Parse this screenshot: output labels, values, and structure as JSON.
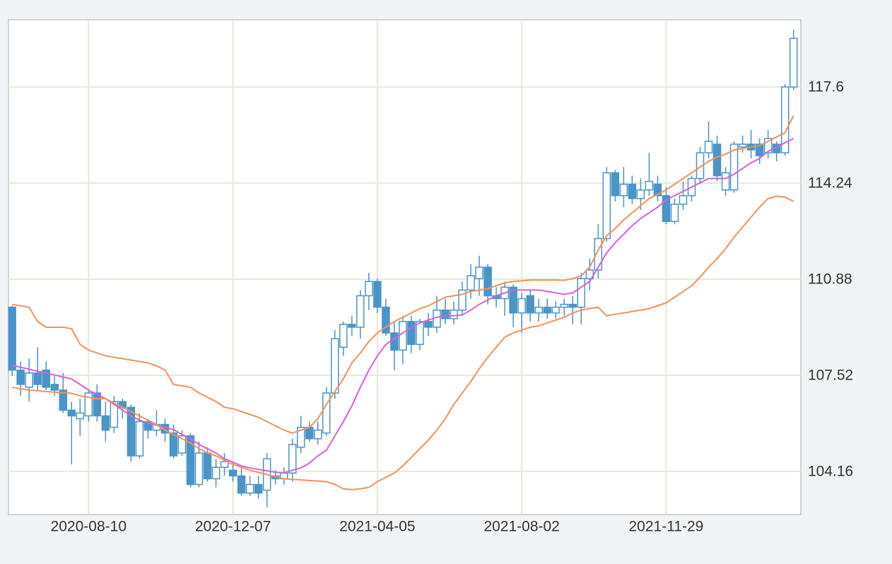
{
  "chart_data": {
    "type": "candlestick",
    "x": [
      "2020-06-08",
      "2020-06-15",
      "2020-06-22",
      "2020-06-29",
      "2020-07-06",
      "2020-07-13",
      "2020-07-20",
      "2020-07-27",
      "2020-08-03",
      "2020-08-10",
      "2020-08-17",
      "2020-08-24",
      "2020-08-31",
      "2020-09-07",
      "2020-09-14",
      "2020-09-21",
      "2020-09-28",
      "2020-10-05",
      "2020-10-12",
      "2020-10-19",
      "2020-10-26",
      "2020-11-02",
      "2020-11-09",
      "2020-11-16",
      "2020-11-23",
      "2020-11-30",
      "2020-12-07",
      "2020-12-14",
      "2020-12-21",
      "2020-12-28",
      "2021-01-04",
      "2021-01-11",
      "2021-01-18",
      "2021-01-25",
      "2021-02-01",
      "2021-02-08",
      "2021-02-15",
      "2021-02-22",
      "2021-03-01",
      "2021-03-08",
      "2021-03-15",
      "2021-03-22",
      "2021-03-29",
      "2021-04-05",
      "2021-04-12",
      "2021-04-19",
      "2021-04-26",
      "2021-05-03",
      "2021-05-10",
      "2021-05-17",
      "2021-05-24",
      "2021-05-31",
      "2021-06-07",
      "2021-06-14",
      "2021-06-21",
      "2021-06-28",
      "2021-07-05",
      "2021-07-12",
      "2021-07-19",
      "2021-07-26",
      "2021-08-02",
      "2021-08-09",
      "2021-08-16",
      "2021-08-23",
      "2021-08-30",
      "2021-09-06",
      "2021-09-13",
      "2021-09-20",
      "2021-09-27",
      "2021-10-04",
      "2021-10-11",
      "2021-10-18",
      "2021-10-25",
      "2021-11-01",
      "2021-11-08",
      "2021-11-15",
      "2021-11-22",
      "2021-11-29",
      "2021-12-06",
      "2021-12-13",
      "2021-12-20",
      "2021-12-27",
      "2022-01-03",
      "2022-01-10",
      "2022-01-17",
      "2022-01-24",
      "2022-01-31",
      "2022-02-07",
      "2022-02-14",
      "2022-02-21",
      "2022-02-28",
      "2022-03-07",
      "2022-03-14"
    ],
    "open": [
      109.9,
      107.7,
      107.1,
      107.6,
      107.7,
      107.2,
      107.0,
      106.3,
      106.0,
      106.1,
      106.9,
      106.1,
      105.7,
      106.6,
      106.4,
      104.7,
      105.9,
      105.6,
      105.8,
      105.5,
      104.8,
      105.4,
      103.7,
      104.8,
      103.9,
      104.3,
      104.2,
      104.0,
      103.4,
      103.7,
      103.5,
      104.0,
      103.9,
      104.1,
      105.0,
      105.7,
      105.3,
      105.5,
      106.9,
      108.5,
      109.3,
      109.2,
      110.3,
      110.8,
      109.9,
      109.0,
      108.4,
      109.4,
      108.6,
      109.4,
      109.2,
      109.8,
      109.5,
      109.8,
      110.5,
      110.9,
      111.3,
      110.3,
      110.2,
      110.6,
      109.7,
      110.3,
      109.7,
      109.9,
      109.7,
      109.9,
      110.0,
      109.9,
      110.9,
      111.2,
      112.3,
      114.6,
      113.8,
      114.2,
      113.7,
      114.0,
      114.2,
      113.8,
      112.9,
      113.5,
      113.8,
      114.4,
      115.3,
      115.6,
      114.0,
      114.0,
      115.5,
      115.6,
      115.6,
      115.3,
      115.6,
      115.3,
      117.6
    ],
    "high": [
      109.95,
      108.0,
      108.1,
      108.5,
      108.0,
      107.5,
      107.6,
      106.6,
      106.7,
      107.0,
      107.2,
      106.6,
      106.8,
      106.7,
      106.5,
      106.2,
      106.0,
      106.3,
      106.0,
      105.8,
      105.6,
      105.5,
      105.2,
      105.0,
      104.6,
      104.8,
      104.5,
      104.3,
      104.0,
      104.0,
      104.8,
      104.2,
      104.3,
      105.3,
      106.1,
      105.9,
      105.9,
      107.1,
      109.1,
      109.4,
      109.6,
      110.5,
      111.1,
      110.9,
      110.2,
      109.4,
      109.6,
      109.6,
      109.5,
      109.7,
      110.3,
      110.2,
      110.1,
      110.8,
      111.4,
      111.7,
      111.4,
      110.6,
      110.8,
      110.7,
      110.4,
      110.5,
      110.2,
      110.2,
      110.1,
      110.2,
      110.3,
      111.1,
      111.6,
      112.8,
      114.8,
      114.7,
      114.8,
      114.5,
      114.4,
      115.3,
      114.5,
      114.1,
      113.7,
      114.3,
      114.5,
      115.5,
      116.4,
      115.9,
      114.8,
      115.7,
      115.9,
      116.1,
      115.8,
      116.1,
      115.7,
      117.7,
      119.6
    ],
    "low": [
      107.5,
      106.8,
      106.6,
      107.0,
      107.0,
      106.8,
      106.2,
      104.4,
      105.4,
      105.9,
      105.9,
      105.2,
      105.5,
      106.0,
      104.5,
      104.6,
      105.3,
      105.4,
      105.2,
      104.6,
      104.7,
      103.6,
      103.6,
      103.8,
      103.6,
      104.0,
      103.8,
      103.3,
      103.3,
      103.2,
      102.9,
      103.7,
      103.7,
      103.8,
      104.8,
      105.2,
      105.1,
      105.4,
      106.7,
      108.2,
      108.9,
      108.8,
      109.8,
      109.7,
      108.9,
      107.7,
      107.9,
      108.3,
      108.4,
      108.9,
      109.0,
      109.3,
      109.3,
      109.6,
      110.2,
      110.3,
      110.0,
      109.9,
      109.6,
      109.2,
      109.0,
      109.4,
      109.4,
      109.5,
      109.5,
      109.6,
      109.3,
      109.3,
      110.5,
      110.9,
      112.2,
      113.6,
      113.4,
      113.5,
      113.3,
      113.8,
      113.6,
      112.8,
      112.8,
      113.3,
      113.6,
      114.2,
      115.1,
      114.3,
      113.8,
      113.9,
      115.3,
      115.1,
      114.9,
      115.1,
      115.0,
      115.2,
      117.5
    ],
    "close": [
      107.7,
      107.2,
      107.6,
      107.2,
      107.1,
      107.0,
      106.3,
      106.1,
      106.2,
      106.9,
      106.1,
      105.6,
      106.6,
      106.4,
      104.7,
      105.9,
      105.6,
      105.8,
      105.5,
      104.7,
      105.4,
      103.7,
      104.8,
      103.9,
      104.3,
      104.5,
      104.0,
      103.4,
      103.7,
      103.4,
      104.6,
      103.9,
      104.1,
      105.1,
      105.7,
      105.3,
      105.6,
      106.9,
      108.8,
      109.3,
      109.2,
      110.3,
      110.8,
      109.9,
      109.0,
      108.4,
      109.4,
      108.6,
      109.4,
      109.2,
      109.8,
      109.5,
      109.8,
      110.5,
      111.0,
      111.3,
      110.3,
      110.2,
      110.6,
      109.7,
      110.2,
      109.7,
      109.9,
      109.7,
      109.9,
      110.0,
      109.9,
      110.9,
      111.2,
      112.3,
      114.6,
      113.8,
      114.2,
      113.7,
      114.0,
      114.3,
      113.8,
      112.9,
      113.5,
      113.8,
      114.4,
      115.3,
      115.7,
      114.5,
      114.6,
      115.6,
      115.6,
      115.4,
      115.2,
      115.8,
      115.3,
      117.6,
      119.3
    ],
    "color": "#4a94c8",
    "lines": [
      {
        "color": "#f4915a",
        "values": [
          110.0,
          109.95,
          109.9,
          109.4,
          109.2,
          109.2,
          109.2,
          109.15,
          108.6,
          108.4,
          108.3,
          108.2,
          108.15,
          108.1,
          108.05,
          108.0,
          107.95,
          107.85,
          107.7,
          107.2,
          107.15,
          107.1,
          106.9,
          106.75,
          106.6,
          106.4,
          106.35,
          106.25,
          106.15,
          106.05,
          105.9,
          105.75,
          105.6,
          105.5,
          105.6,
          105.7,
          106.0,
          106.5,
          106.95,
          107.4,
          107.95,
          108.3,
          108.7,
          109.0,
          109.2,
          109.4,
          109.55,
          109.7,
          109.85,
          109.95,
          110.1,
          110.25,
          110.3,
          110.35,
          110.45,
          110.5,
          110.55,
          110.65,
          110.75,
          110.8,
          110.82,
          110.85,
          110.85,
          110.85,
          110.85,
          110.84,
          110.9,
          111.0,
          111.3,
          111.9,
          112.4,
          112.65,
          112.95,
          113.2,
          113.45,
          113.7,
          113.85,
          114.0,
          114.2,
          114.4,
          114.6,
          114.8,
          115.0,
          115.15,
          115.25,
          115.4,
          115.45,
          115.5,
          115.55,
          115.7,
          115.85,
          116.0,
          116.6
        ]
      },
      {
        "color": "#d562d8",
        "values": [
          107.87,
          107.8,
          107.73,
          107.66,
          107.6,
          107.53,
          107.46,
          107.39,
          107.2,
          107.0,
          106.85,
          106.7,
          106.5,
          106.3,
          106.1,
          105.95,
          105.85,
          105.78,
          105.7,
          105.62,
          105.45,
          105.3,
          105.1,
          104.95,
          104.8,
          104.6,
          104.48,
          104.35,
          104.28,
          104.23,
          104.18,
          104.13,
          104.1,
          104.2,
          104.28,
          104.45,
          104.7,
          104.9,
          105.4,
          105.9,
          106.45,
          107.1,
          107.7,
          108.2,
          108.6,
          108.8,
          109.0,
          109.2,
          109.35,
          109.45,
          109.55,
          109.6,
          109.6,
          109.63,
          109.8,
          110.0,
          110.15,
          110.3,
          110.4,
          110.5,
          110.5,
          110.5,
          110.5,
          110.45,
          110.4,
          110.35,
          110.4,
          110.6,
          110.8,
          111.3,
          111.8,
          112.15,
          112.45,
          112.75,
          113.0,
          113.2,
          113.4,
          113.65,
          113.8,
          113.95,
          114.1,
          114.25,
          114.4,
          114.4,
          114.4,
          114.55,
          114.75,
          114.95,
          115.1,
          115.35,
          115.5,
          115.65,
          115.8
        ]
      },
      {
        "color": "#f4915a",
        "values": [
          107.1,
          107.05,
          107.0,
          106.98,
          106.95,
          106.93,
          106.91,
          106.89,
          106.8,
          106.75,
          106.7,
          106.7,
          106.55,
          106.4,
          106.25,
          106.1,
          105.95,
          105.8,
          105.6,
          105.45,
          105.3,
          105.15,
          104.95,
          104.8,
          104.7,
          104.55,
          104.4,
          104.3,
          104.2,
          104.12,
          104.05,
          103.97,
          103.9,
          103.88,
          103.86,
          103.84,
          103.82,
          103.8,
          103.7,
          103.55,
          103.52,
          103.55,
          103.6,
          103.8,
          103.95,
          104.1,
          104.35,
          104.65,
          104.95,
          105.25,
          105.6,
          106.0,
          106.5,
          106.9,
          107.3,
          107.75,
          108.15,
          108.5,
          108.85,
          109.0,
          109.1,
          109.2,
          109.25,
          109.35,
          109.45,
          109.55,
          109.7,
          109.8,
          109.85,
          109.9,
          109.6,
          109.65,
          109.7,
          109.75,
          109.8,
          109.85,
          109.95,
          110.05,
          110.25,
          110.45,
          110.65,
          110.95,
          111.3,
          111.6,
          111.95,
          112.35,
          112.7,
          113.05,
          113.4,
          113.7,
          113.78,
          113.75,
          113.6
        ]
      }
    ],
    "xlim": [
      "2020-06-05",
      "2022-03-20"
    ],
    "xticks": [
      "2020-08-10",
      "2020-12-07",
      "2021-04-05",
      "2021-08-02",
      "2021-11-29"
    ],
    "ylim": [
      102.65,
      119.95
    ],
    "yticks": [
      104.16,
      107.52,
      110.88,
      114.24,
      117.6
    ],
    "grid": true
  }
}
